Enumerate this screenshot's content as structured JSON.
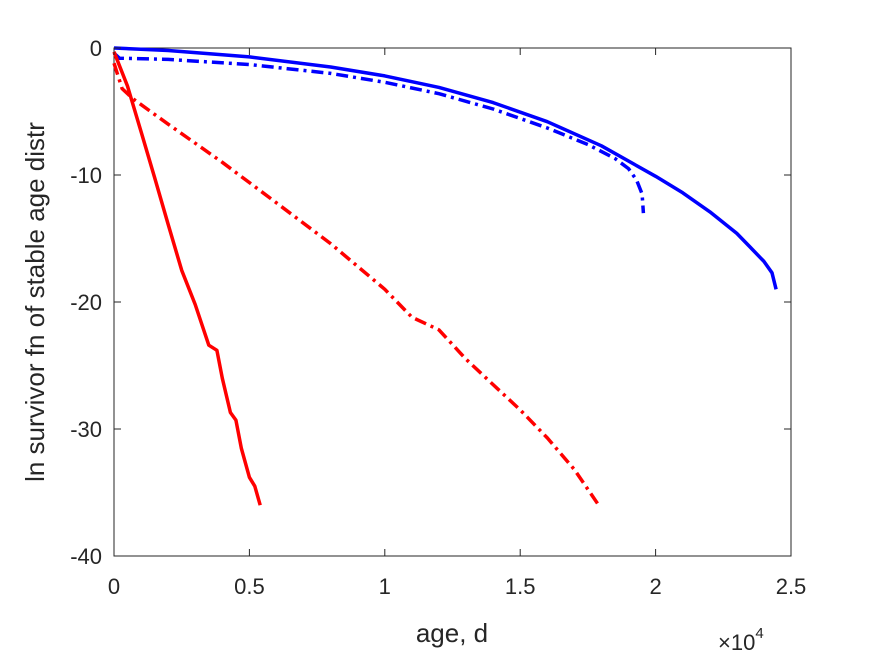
{
  "chart_data": {
    "type": "line",
    "title": "",
    "xlabel": "age, d",
    "ylabel": "ln survivor fn of stable age distr",
    "x_exponent_label": {
      "base": "×10",
      "exp": "4"
    },
    "xlim": [
      0,
      25000
    ],
    "ylim": [
      -40,
      0
    ],
    "xticks": [
      {
        "value": 0,
        "label": "0"
      },
      {
        "value": 5000,
        "label": "0.5"
      },
      {
        "value": 10000,
        "label": "1"
      },
      {
        "value": 15000,
        "label": "1.5"
      },
      {
        "value": 20000,
        "label": "2"
      },
      {
        "value": 25000,
        "label": "2.5"
      }
    ],
    "yticks": [
      {
        "value": 0,
        "label": "0"
      },
      {
        "value": -10,
        "label": "-10"
      },
      {
        "value": -20,
        "label": "-20"
      },
      {
        "value": -30,
        "label": "-30"
      },
      {
        "value": -40,
        "label": "-40"
      }
    ],
    "grid": false,
    "series": [
      {
        "color": "#0000ff",
        "dash": "solid",
        "points": [
          [
            0,
            0
          ],
          [
            2000,
            -0.2
          ],
          [
            5000,
            -0.7
          ],
          [
            8000,
            -1.5
          ],
          [
            10000,
            -2.2
          ],
          [
            12000,
            -3.1
          ],
          [
            14000,
            -4.3
          ],
          [
            16000,
            -5.8
          ],
          [
            18000,
            -7.7
          ],
          [
            20000,
            -10.1
          ],
          [
            21000,
            -11.4
          ],
          [
            22000,
            -12.9
          ],
          [
            23000,
            -14.6
          ],
          [
            23500,
            -15.7
          ],
          [
            24000,
            -16.8
          ],
          [
            24300,
            -17.7
          ],
          [
            24450,
            -19.0
          ]
        ]
      },
      {
        "color": "#0000ff",
        "dash": "dashdot",
        "points": [
          [
            0,
            -0.4
          ],
          [
            200,
            -0.8
          ],
          [
            2000,
            -0.9
          ],
          [
            5000,
            -1.3
          ],
          [
            8000,
            -2.0
          ],
          [
            10000,
            -2.7
          ],
          [
            12000,
            -3.6
          ],
          [
            14000,
            -4.8
          ],
          [
            16000,
            -6.3
          ],
          [
            17500,
            -7.6
          ],
          [
            18500,
            -8.7
          ],
          [
            19000,
            -9.5
          ],
          [
            19300,
            -10.4
          ],
          [
            19500,
            -11.5
          ],
          [
            19550,
            -13.0
          ]
        ]
      },
      {
        "color": "#ff0000",
        "dash": "solid",
        "points": [
          [
            0,
            -0.3
          ],
          [
            500,
            -3.0
          ],
          [
            1000,
            -6.6
          ],
          [
            1500,
            -10.2
          ],
          [
            2000,
            -13.9
          ],
          [
            2500,
            -17.5
          ],
          [
            3000,
            -20.2
          ],
          [
            3500,
            -23.4
          ],
          [
            3800,
            -23.8
          ],
          [
            4000,
            -26.0
          ],
          [
            4300,
            -28.7
          ],
          [
            4500,
            -29.3
          ],
          [
            4700,
            -31.5
          ],
          [
            5000,
            -33.8
          ],
          [
            5200,
            -34.5
          ],
          [
            5400,
            -36.0
          ]
        ]
      },
      {
        "color": "#ff0000",
        "dash": "dashdot",
        "points": [
          [
            0,
            -1.2
          ],
          [
            300,
            -3.2
          ],
          [
            700,
            -4.0
          ],
          [
            2000,
            -6.0
          ],
          [
            4000,
            -9.0
          ],
          [
            6000,
            -12.2
          ],
          [
            8000,
            -15.4
          ],
          [
            10000,
            -19.0
          ],
          [
            11000,
            -21.2
          ],
          [
            12000,
            -22.2
          ],
          [
            13000,
            -24.5
          ],
          [
            14000,
            -26.5
          ],
          [
            15000,
            -28.5
          ],
          [
            16000,
            -30.7
          ],
          [
            17000,
            -33.2
          ],
          [
            17900,
            -36.0
          ]
        ]
      }
    ]
  }
}
